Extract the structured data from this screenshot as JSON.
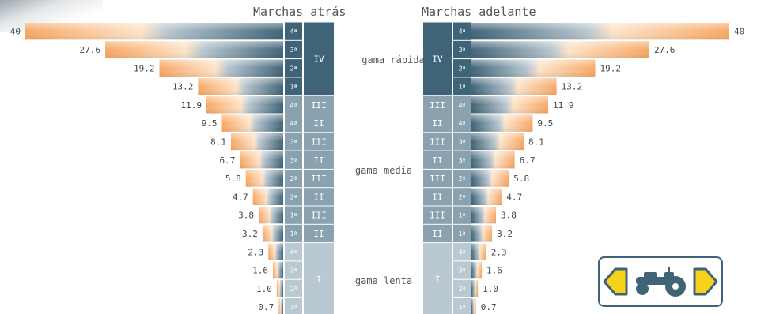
{
  "titles": {
    "left": "Marchas atrás",
    "right": "Marchas adelante"
  },
  "range_labels": {
    "fast": "gama rápida",
    "medium": "gama media",
    "slow": "gama lenta"
  },
  "chart_data": {
    "type": "bar",
    "orientation": "horizontal-mirrored",
    "unit": "",
    "series": [
      {
        "side": "left",
        "values": [
          40,
          27.6,
          19.2,
          13.2,
          11.9,
          9.5,
          8.1,
          6.7,
          5.8,
          4.7,
          3.8,
          3.2,
          2.3,
          1.6,
          1.0,
          0.7
        ],
        "value_labels": [
          "40",
          "27.6",
          "19.2",
          "13.2",
          "11.9",
          "9.5",
          "8.1",
          "6.7",
          "5.8",
          "4.7",
          "3.8",
          "3.2",
          "2.3",
          "1.6",
          "1.0",
          "0.7"
        ]
      },
      {
        "side": "right",
        "values": [
          40,
          27.6,
          19.2,
          13.2,
          11.9,
          9.5,
          8.1,
          6.7,
          5.8,
          4.7,
          3.8,
          3.2,
          2.3,
          1.6,
          1.0,
          0.7
        ],
        "value_labels": [
          "40",
          "27.6",
          "19.2",
          "13.2",
          "11.9",
          "9.5",
          "8.1",
          "6.7",
          "5.8",
          "4.7",
          "3.8",
          "3.2",
          "2.3",
          "1.6",
          "1.0",
          "0.7"
        ]
      }
    ],
    "gears": [
      "4ª",
      "3ª",
      "2ª",
      "1ª",
      "4ª",
      "4ª",
      "3ª",
      "3ª",
      "2ª",
      "2ª",
      "1ª",
      "1ª",
      "4ª",
      "3ª",
      "2ª",
      "1ª"
    ],
    "ranges": [
      "IV",
      "IV",
      "IV",
      "IV",
      "III",
      "II",
      "III",
      "II",
      "III",
      "II",
      "III",
      "II",
      "I",
      "I",
      "I",
      "I"
    ],
    "range_groups": [
      {
        "label": "IV",
        "rows": [
          0,
          3
        ],
        "tone": "dark"
      },
      {
        "label": "III",
        "rows": [
          4,
          4
        ],
        "tone": "mid"
      },
      {
        "label": "II",
        "rows": [
          5,
          5
        ],
        "tone": "mid"
      },
      {
        "label": "III",
        "rows": [
          6,
          6
        ],
        "tone": "mid"
      },
      {
        "label": "II",
        "rows": [
          7,
          7
        ],
        "tone": "mid"
      },
      {
        "label": "III",
        "rows": [
          8,
          8
        ],
        "tone": "mid"
      },
      {
        "label": "II",
        "rows": [
          9,
          9
        ],
        "tone": "mid"
      },
      {
        "label": "III",
        "rows": [
          10,
          10
        ],
        "tone": "mid"
      },
      {
        "label": "II",
        "rows": [
          11,
          11
        ],
        "tone": "mid"
      },
      {
        "label": "I",
        "rows": [
          12,
          15
        ],
        "tone": "light"
      }
    ],
    "xlim": [
      0,
      40
    ],
    "grid": false,
    "legend": "none"
  },
  "colors": {
    "dark": "#3f6478",
    "mid": "#8aa2b0",
    "light": "#b9c8d1",
    "bar_orange": "#f5a868",
    "bar_blue": "#3f6478",
    "label": "#444444",
    "nav_yellow": "#f7d21a"
  },
  "icons": {
    "left_arrow": "left-arrow-icon",
    "right_arrow": "right-arrow-icon",
    "tractor": "tractor-icon"
  }
}
